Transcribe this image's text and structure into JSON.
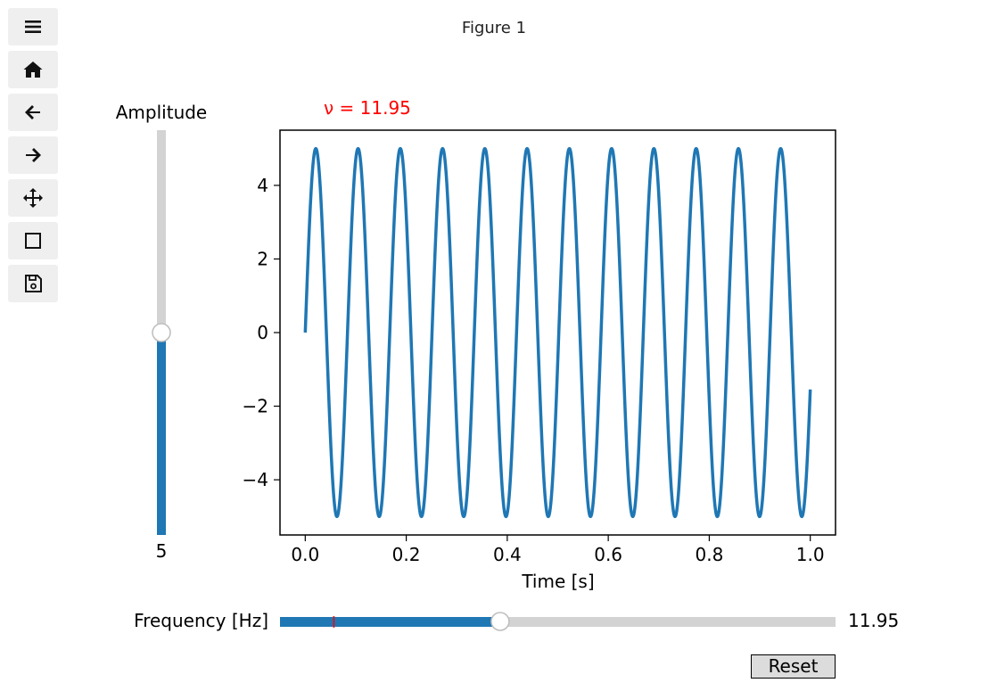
{
  "window": {
    "title": "Figure 1"
  },
  "toolbar": {
    "buttons": [
      {
        "name": "menu-icon",
        "label": "Menu"
      },
      {
        "name": "home-icon",
        "label": "Home"
      },
      {
        "name": "back-icon",
        "label": "Back"
      },
      {
        "name": "forward-icon",
        "label": "Forward"
      },
      {
        "name": "pan-icon",
        "label": "Pan"
      },
      {
        "name": "zoom-icon",
        "label": "Zoom"
      },
      {
        "name": "save-icon",
        "label": "Save"
      }
    ]
  },
  "amplitude_slider": {
    "label": "Amplitude",
    "value": 5,
    "value_text": "5",
    "min": 0,
    "max": 10
  },
  "frequency_slider": {
    "label": "Frequency [Hz]",
    "value": 11.95,
    "value_text": "11.95",
    "min": 0.1,
    "max": 30,
    "init_marker": 3
  },
  "annotation": {
    "text": "ν = 11.95",
    "color": "#ff0000"
  },
  "reset_button": {
    "label": "Reset"
  },
  "colors": {
    "line": "#1f77b4",
    "track": "#d3d3d3",
    "accent": "#ff0000"
  },
  "chart_data": {
    "type": "line",
    "title": "",
    "xlabel": "Time [s]",
    "ylabel": "",
    "xlim": [
      -0.05,
      1.05
    ],
    "ylim": [
      -5.5,
      5.5
    ],
    "xticks": [
      "0.0",
      "0.2",
      "0.4",
      "0.6",
      "0.8",
      "1.0"
    ],
    "yticks": [
      "4",
      "2",
      "0",
      "−2",
      "−4"
    ],
    "series": [
      {
        "function": "amplitude * sin(2*pi*frequency*t)",
        "amplitude": 5,
        "frequency": 11.95,
        "t_range": [
          0,
          1
        ]
      }
    ],
    "grid": false
  }
}
